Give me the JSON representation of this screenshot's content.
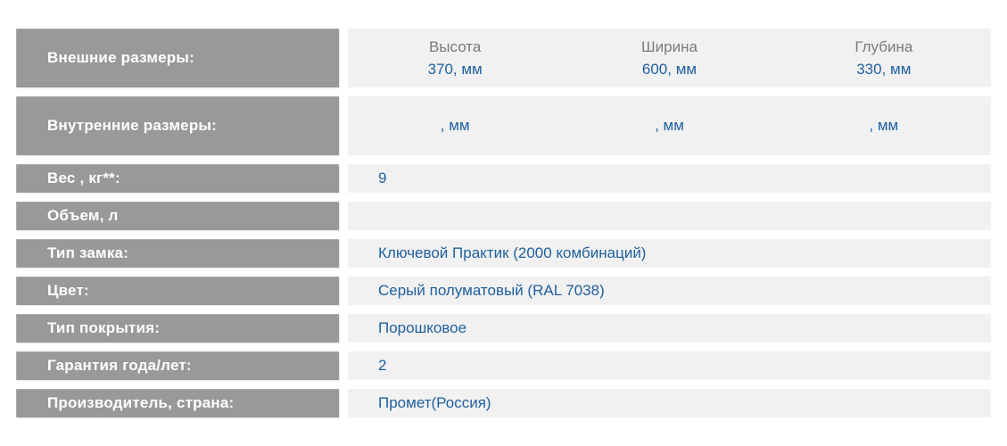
{
  "colors": {
    "label_background": "#999999",
    "label_text": "#ffffff",
    "value_background": "#f1f1f1",
    "value_text_blue": "#1f5f9f",
    "dimension_header_gray": "#7a7a7a",
    "page_background": "#ffffff"
  },
  "spec_table": {
    "external_dimensions": {
      "label": "Внешние размеры:",
      "columns": [
        {
          "header": "Высота",
          "value": "370, мм"
        },
        {
          "header": "Ширина",
          "value": "600, мм"
        },
        {
          "header": "Глубина",
          "value": "330, мм"
        }
      ]
    },
    "internal_dimensions": {
      "label": "Внутренние размеры:",
      "columns": [
        {
          "value": ", мм"
        },
        {
          "value": ", мм"
        },
        {
          "value": ", мм"
        }
      ]
    },
    "weight": {
      "label": "Вес , кг**:",
      "value": "9"
    },
    "volume": {
      "label": "Объем, л",
      "value": ""
    },
    "lock_type": {
      "label": "Тип замка:",
      "value": "Ключевой Практик (2000 комбинаций)"
    },
    "color": {
      "label": "Цвет:",
      "value": "Серый полуматовый (RAL 7038)"
    },
    "coating_type": {
      "label": "Тип покрытия:",
      "value": "Порошковое"
    },
    "warranty": {
      "label": "Гарантия года/лет:",
      "value": "2"
    },
    "manufacturer": {
      "label": "Производитель, страна:",
      "value": "Промет(Россия)"
    }
  }
}
